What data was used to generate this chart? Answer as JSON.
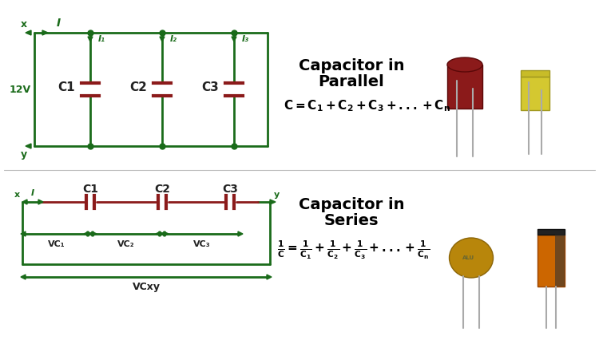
{
  "bg_color": "#ffffff",
  "circuit_color": "#1a6b1a",
  "cap_color": "#8b1a1a",
  "title1a": "Capacitor in",
  "title1b": "Parallel",
  "title2a": "Capacitor in",
  "title2b": "Series",
  "label_12v": "12V",
  "label_I": "I",
  "label_I1": "I₁",
  "label_I2": "I₂",
  "label_I3": "I₃",
  "label_C1": "C1",
  "label_C2": "C2",
  "label_C3": "C3",
  "label_x": "x",
  "label_y": "y",
  "label_VC1": "VC₁",
  "label_VC2": "VC₂",
  "label_VC3": "VC₃",
  "label_VCxy": "VCxy"
}
